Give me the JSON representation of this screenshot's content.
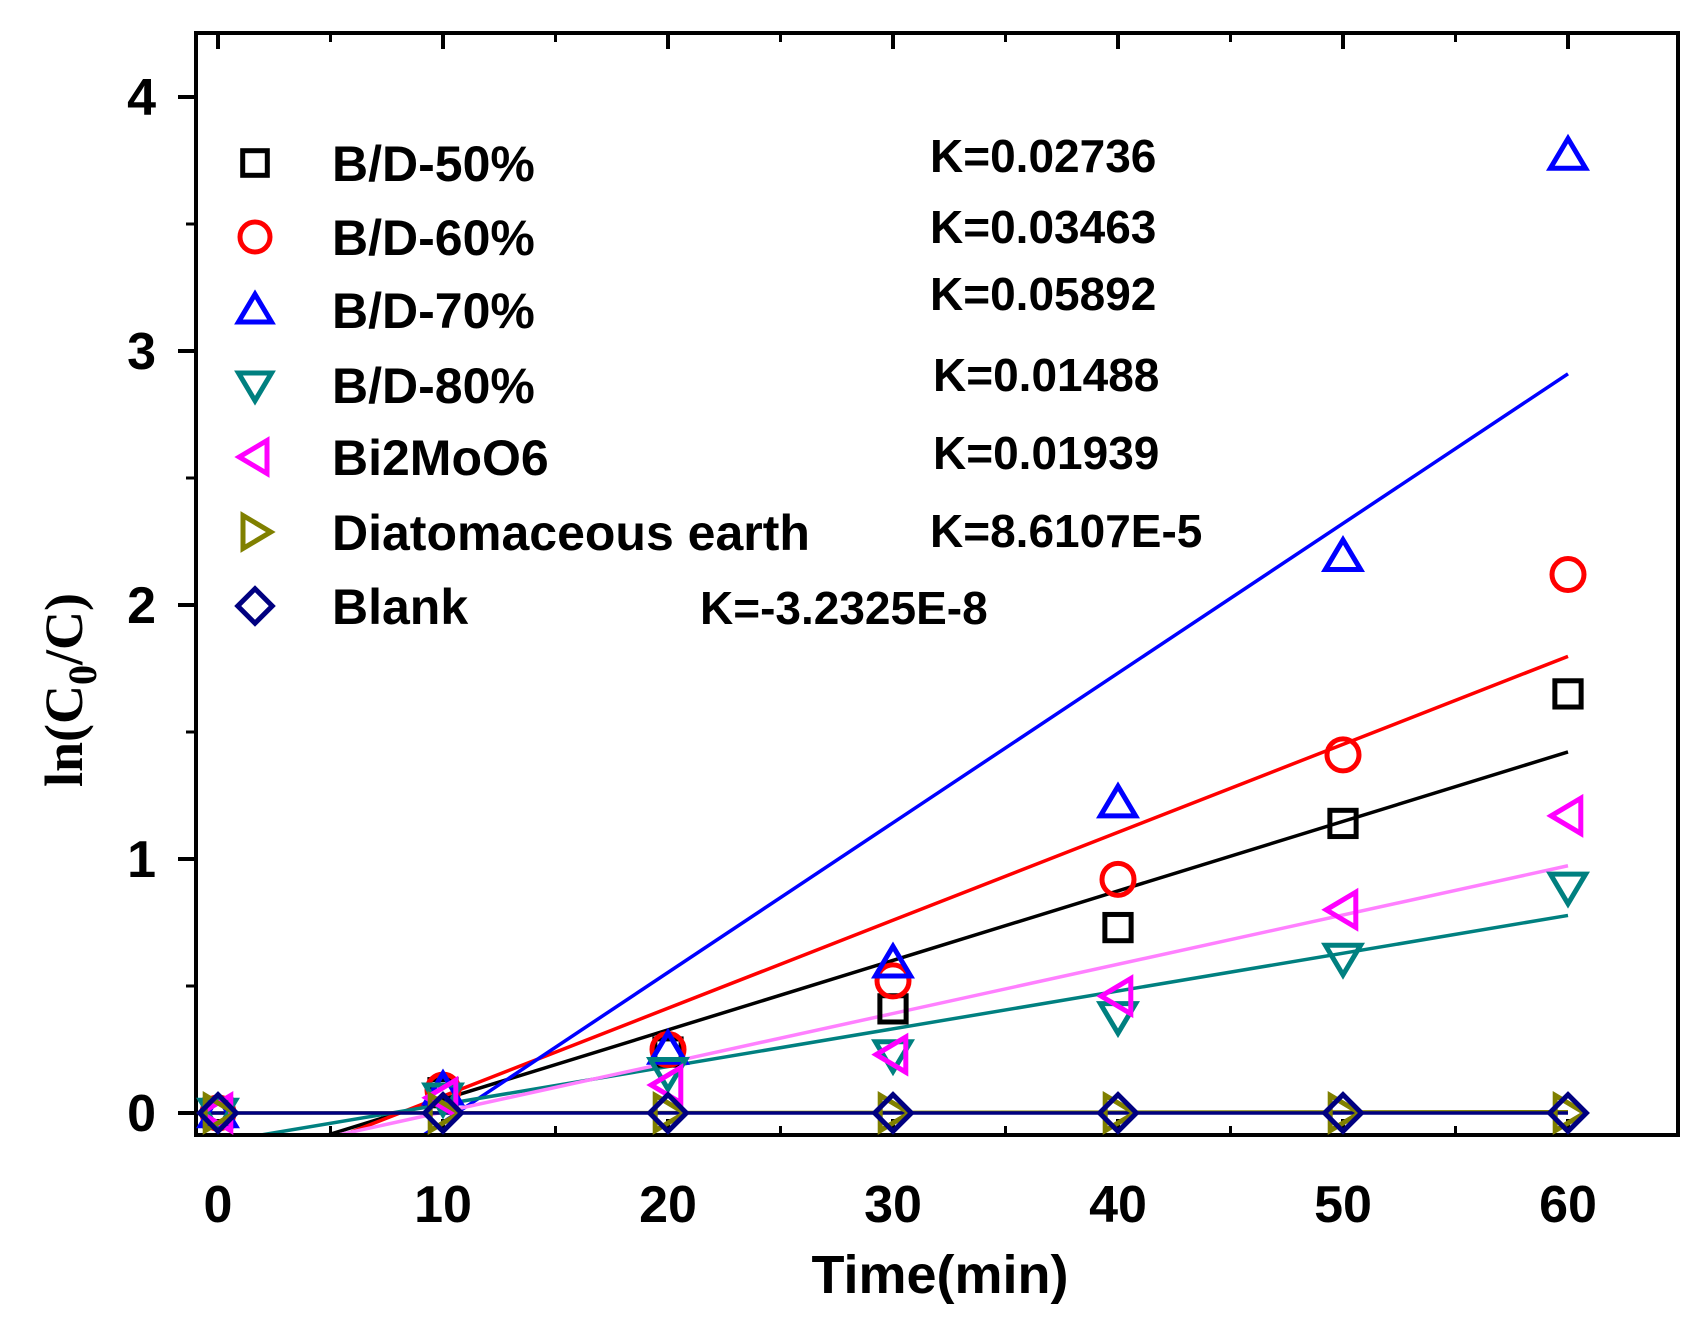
{
  "chart_data": {
    "type": "scatter",
    "title": "",
    "xlabel": "Time(min)",
    "ylabel_prefix": "ln(C",
    "ylabel_sub": "0",
    "ylabel_suffix": "/C)",
    "xlim": [
      -1.5,
      65
    ],
    "ylim": [
      -0.1,
      4.3
    ],
    "xticks": [
      0,
      10,
      20,
      30,
      40,
      50,
      60
    ],
    "xtick_labels": [
      "0",
      "10",
      "20",
      "30",
      "40",
      "50",
      "60"
    ],
    "yticks": [
      0,
      1,
      2,
      3,
      4
    ],
    "ytick_labels": [
      "0",
      "1",
      "2",
      "3",
      "4"
    ],
    "grid": false,
    "legend_position": "top-left",
    "x": [
      0,
      10,
      20,
      30,
      40,
      50,
      60
    ],
    "series": [
      {
        "name": "B/D-50%",
        "marker": "square",
        "color": "#000000",
        "values": [
          0,
          0.08,
          0.24,
          0.41,
          0.73,
          1.14,
          1.65
        ],
        "fit": {
          "slope": 0.02736,
          "intercept": -0.22
        },
        "k_label": "K=0.02736"
      },
      {
        "name": "B/D-60%",
        "marker": "circle",
        "color": "#ff0000",
        "values": [
          0,
          0.09,
          0.25,
          0.52,
          0.92,
          1.41,
          2.12
        ],
        "fit": {
          "slope": 0.03463,
          "intercept": -0.28
        },
        "k_label": "K=0.03463"
      },
      {
        "name": "B/D-70%",
        "marker": "triangle-up",
        "color": "#0000ff",
        "values": [
          0,
          0.09,
          0.25,
          0.59,
          1.22,
          2.19,
          3.77
        ],
        "fit": {
          "slope": 0.05892,
          "intercept": -0.625
        },
        "k_label": "K=0.05892"
      },
      {
        "name": "B/D-80%",
        "marker": "triangle-down",
        "color": "#008080",
        "values": [
          0,
          0.06,
          0.16,
          0.23,
          0.38,
          0.61,
          0.89
        ],
        "fit": {
          "slope": 0.01488,
          "intercept": -0.115
        },
        "k_label": "K=0.01488"
      },
      {
        "name": "Bi2MoO6",
        "marker": "triangle-left",
        "color": "#ff00ff",
        "values": [
          0,
          0.06,
          0.11,
          0.23,
          0.46,
          0.8,
          1.17
        ],
        "fit": {
          "slope": 0.01939,
          "intercept": -0.19
        },
        "fit_color": "#ff80ff",
        "k_label": "K=0.01939"
      },
      {
        "name": "Diatomaceous earth",
        "marker": "triangle-right",
        "color": "#808000",
        "values": [
          0,
          0,
          0,
          0,
          0,
          0,
          0
        ],
        "fit": {
          "slope": 8.6107e-05,
          "intercept": 0
        },
        "k_label": "K=8.6107E-5"
      },
      {
        "name": "Blank",
        "marker": "diamond",
        "color": "#000080",
        "values": [
          0,
          0,
          0,
          0,
          0,
          0,
          0
        ],
        "fit": {
          "slope": -3.2325e-08,
          "intercept": 0
        },
        "k_label": "K=-3.2325E-8"
      }
    ]
  }
}
